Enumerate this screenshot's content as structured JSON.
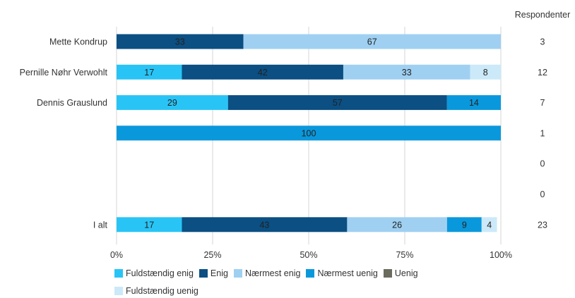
{
  "chart_data": {
    "type": "bar",
    "orientation": "horizontal",
    "stacked": true,
    "categories": [
      "Mette Kondrup",
      "Pernille Nøhr Verwohlt",
      "Dennis Grauslund",
      "",
      "",
      "",
      "I alt"
    ],
    "respondents_header": "Respondenter",
    "respondents": [
      "3",
      "12",
      "7",
      "1",
      "0",
      "0",
      "23"
    ],
    "series": [
      {
        "name": "Fuldstændig enig",
        "color": "#29c4f6",
        "values": [
          0,
          17,
          29,
          0,
          0,
          0,
          17
        ]
      },
      {
        "name": "Enig",
        "color": "#0b4f83",
        "values": [
          33,
          42,
          57,
          0,
          0,
          0,
          43
        ]
      },
      {
        "name": "Nærmest enig",
        "color": "#9fd0f2",
        "values": [
          67,
          33,
          0,
          0,
          0,
          0,
          26
        ]
      },
      {
        "name": "Nærmest uenig",
        "color": "#0a98dc",
        "values": [
          0,
          0,
          14,
          100,
          0,
          0,
          9
        ]
      },
      {
        "name": "Uenig",
        "color": "#6b6b5e",
        "values": [
          0,
          0,
          0,
          0,
          0,
          0,
          0
        ]
      },
      {
        "name": "Fuldstændig uenig",
        "color": "#cbe9f9",
        "values": [
          0,
          8,
          0,
          0,
          0,
          0,
          4
        ]
      }
    ],
    "label_colors": [
      "#222222",
      "#222222",
      "#222222",
      "#222222",
      "#ffffff",
      "#222222"
    ],
    "xlim": [
      0,
      100
    ],
    "xticks": [
      "0%",
      "25%",
      "50%",
      "75%",
      "100%"
    ],
    "grid": true,
    "legend_position": "bottom"
  }
}
